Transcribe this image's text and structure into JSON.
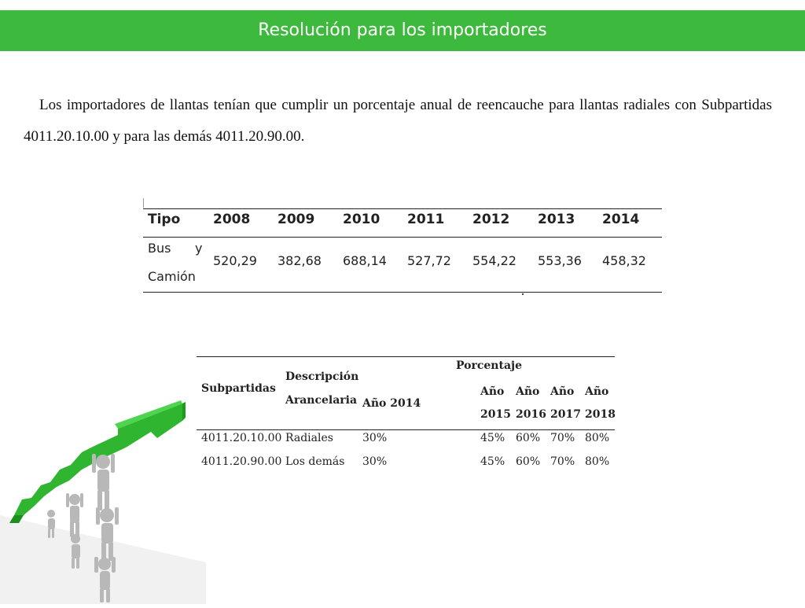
{
  "title": "Resolución para los importadores",
  "intro": "Los importadores de llantas tenían que cumplir un porcentaje anual de reencauche para llantas radiales con Subpartidas 4011.20.10.00 y para las demás 4011.20.90.00.",
  "table1": {
    "headers": [
      "Tipo",
      "2008",
      "2009",
      "2010",
      "2011",
      "2012",
      "2013",
      "2014"
    ],
    "row_label_line1": "Bus",
    "row_label_y": "y",
    "row_label_line2": "Camión",
    "values": [
      "520,29",
      "382,68",
      "688,14",
      "527,72",
      "554,22",
      "553,36",
      "458,32"
    ]
  },
  "table2": {
    "headers": {
      "subpartidas": "Subpartidas",
      "descripcion_1": "Descripción",
      "descripcion_2": "Arancelaria",
      "porcentaje": "Porcentaje",
      "ano2014": "Año 2014",
      "years": [
        {
          "top": "Año",
          "bottom": "2015"
        },
        {
          "top": "Año",
          "bottom": "2016"
        },
        {
          "top": "Año",
          "bottom": "2017"
        },
        {
          "top": "Año",
          "bottom": "2018"
        }
      ]
    },
    "rows": [
      {
        "subpartida": "4011.20.10.00",
        "descripcion": "Radiales",
        "a2014": "30%",
        "a2015": "45%",
        "a2016": "60%",
        "a2017": "70%",
        "a2018": "80%"
      },
      {
        "subpartida": "4011.20.90.00",
        "descripcion": "Los demás",
        "a2014": "30%",
        "a2015": "45%",
        "a2016": "60%",
        "a2017": "70%",
        "a2018": "80%"
      }
    ]
  },
  "illustration": {
    "icon": "team-lifting-arrow-icon",
    "arrow_color": "#2fb52f",
    "figure_color": "#b8b8b8"
  }
}
